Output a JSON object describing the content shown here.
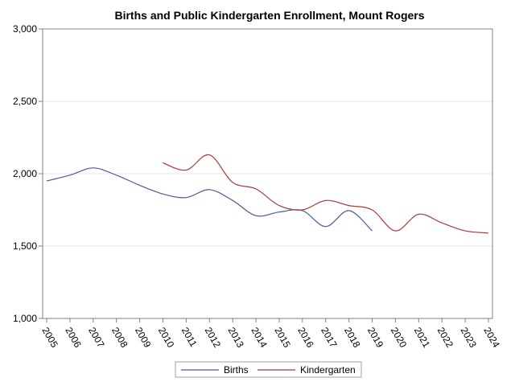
{
  "chart_data": {
    "type": "line",
    "title": "Births and Public Kindergarten Enrollment, Mount Rogers",
    "xlabel": "",
    "ylabel": "",
    "x": [
      "2005",
      "2006",
      "2007",
      "2008",
      "2009",
      "2010",
      "2011",
      "2012",
      "2013",
      "2014",
      "2015",
      "2016",
      "2017",
      "2018",
      "2019",
      "2020",
      "2021",
      "2022",
      "2023",
      "2024"
    ],
    "ylim": [
      1000,
      3000
    ],
    "yticks": [
      "1,000",
      "1,500",
      "2,000",
      "2,500",
      "3,000"
    ],
    "grid": true,
    "legend_position": "bottom",
    "series": [
      {
        "name": "Births",
        "color": "#4a5a9a",
        "values": [
          1950,
          1990,
          2040,
          1990,
          1920,
          1860,
          1835,
          1890,
          1815,
          1710,
          1735,
          1745,
          1635,
          1745,
          1605,
          null,
          null,
          null,
          null,
          null
        ]
      },
      {
        "name": "Kindergarten",
        "color": "#a83a3a",
        "values": [
          null,
          null,
          null,
          null,
          null,
          2075,
          2025,
          2130,
          1940,
          1895,
          1780,
          1750,
          1815,
          1780,
          1750,
          1605,
          1720,
          1660,
          1605,
          1590
        ]
      }
    ]
  }
}
